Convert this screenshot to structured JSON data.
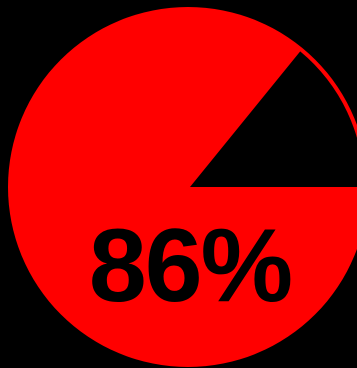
{
  "progress": {
    "label": "86%",
    "value": 0.86
  },
  "colors": {
    "background": "#000000",
    "fill": "#ff0000",
    "remaining": "#000000",
    "text": "#000000"
  }
}
